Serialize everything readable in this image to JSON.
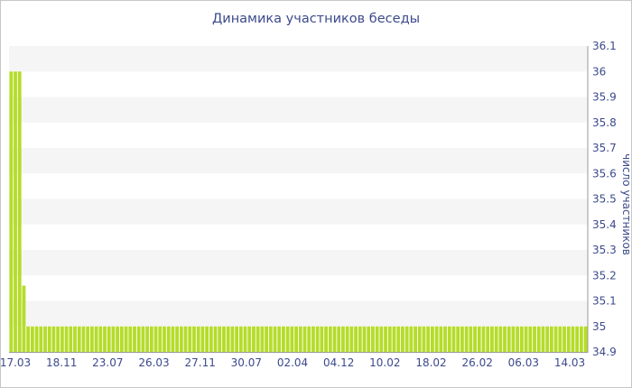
{
  "chart_data": {
    "type": "bar",
    "title": "Динамика участников беседы",
    "xlabel": "",
    "ylabel": "число участников",
    "ylim": [
      34.9,
      36.1
    ],
    "y_ticks": [
      "36.1",
      "36",
      "35.9",
      "35.8",
      "35.7",
      "35.6",
      "35.5",
      "35.4",
      "35.3",
      "35.2",
      "35.1",
      "35",
      "34.9"
    ],
    "x_tick_labels": [
      "17.03",
      "18.11",
      "23.07",
      "26.03",
      "27.11",
      "30.07",
      "02.04",
      "04.12",
      "10.02",
      "18.02",
      "26.02",
      "06.03",
      "14.03"
    ],
    "y_axis_side": "right",
    "grid": "alternating horizontal bands",
    "legend": "none",
    "bar_color": "#b5dc2a",
    "values": [
      36,
      36,
      36,
      35.16,
      35,
      35,
      35,
      35,
      35,
      35,
      35,
      35,
      35,
      35,
      35,
      35,
      35,
      35,
      35,
      35,
      35,
      35,
      35,
      35,
      35,
      35,
      35,
      35,
      35,
      35,
      35,
      35,
      35,
      35,
      35,
      35,
      35,
      35,
      35,
      35,
      35,
      35,
      35,
      35,
      35,
      35,
      35,
      35,
      35,
      35,
      35,
      35,
      35,
      35,
      35,
      35,
      35,
      35,
      35,
      35,
      35,
      35,
      35,
      35,
      35,
      35,
      35,
      35,
      35,
      35,
      35,
      35,
      35,
      35,
      35,
      35,
      35,
      35,
      35,
      35,
      35,
      35,
      35,
      35,
      35,
      35,
      35,
      35,
      35,
      35,
      35,
      35,
      35,
      35,
      35,
      35,
      35,
      35,
      35,
      35,
      35,
      35,
      35,
      35,
      35,
      35,
      35,
      35,
      35,
      35,
      35,
      35,
      35,
      35,
      35,
      35,
      35,
      35,
      35,
      35,
      35,
      35,
      35,
      35,
      35,
      35,
      35,
      35,
      35,
      35,
      35,
      35,
      35,
      35,
      35,
      35
    ]
  }
}
